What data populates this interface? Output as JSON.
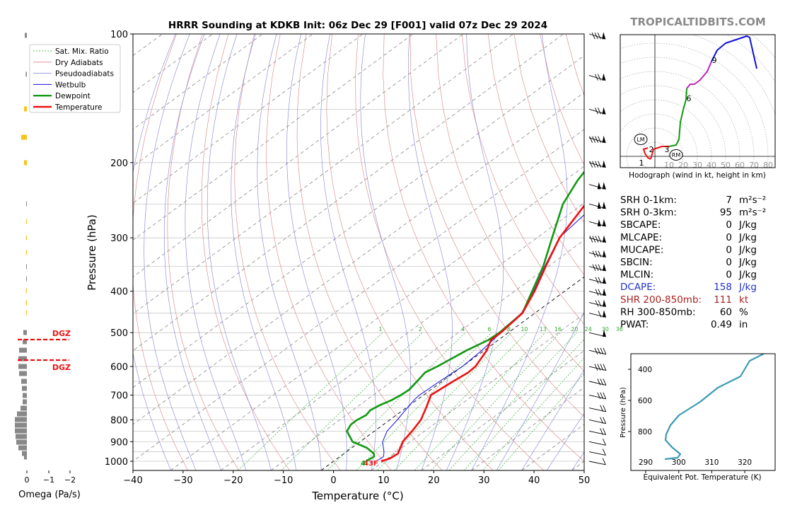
{
  "title": "HRRR Sounding at KDKB Init: 06z Dec 29 [F001] valid 07z Dec 29 2024",
  "watermark": "TROPICALTIDBITS.COM",
  "chart_data": [
    {
      "type": "line",
      "name": "skew-t",
      "xlabel": "Temperature (°C)",
      "ylabel": "Pressure (hPa)",
      "xlim": [
        -40,
        50
      ],
      "ylim": [
        1050,
        100
      ],
      "y_scale": "log",
      "x_ticks": [
        -40,
        -30,
        -20,
        -10,
        0,
        10,
        20,
        30,
        40,
        50
      ],
      "y_ticks": [
        100,
        200,
        300,
        400,
        500,
        600,
        700,
        800,
        900,
        1000
      ],
      "legend": {
        "position": "top-left",
        "entries": [
          "Sat. Mix. Ratio",
          "Dry Adiabats",
          "Pseudoadiabats",
          "Wetbulb",
          "Dewpoint",
          "Temperature"
        ]
      },
      "mixing_ratio_labels": [
        "1",
        "2",
        "4",
        "6",
        "8",
        "10",
        "13",
        "16",
        "20",
        "24",
        "30",
        "36"
      ],
      "surface_label": "43F",
      "series": [
        {
          "name": "Temperature",
          "color": "#ee1111",
          "points": [
            [
              1000,
              9.5
            ],
            [
              985,
              10.5
            ],
            [
              960,
              10.8
            ],
            [
              925,
              9.5
            ],
            [
              900,
              8.5
            ],
            [
              850,
              7.5
            ],
            [
              800,
              6.2
            ],
            [
              750,
              4.0
            ],
            [
              700,
              1.5
            ],
            [
              650,
              2.2
            ],
            [
              620,
              2.8
            ],
            [
              600,
              2.6
            ],
            [
              550,
              0.5
            ],
            [
              520,
              -1.5
            ],
            [
              500,
              -1.5
            ],
            [
              450,
              -2.5
            ],
            [
              400,
              -6
            ],
            [
              350,
              -10.5
            ],
            [
              300,
              -15.5
            ],
            [
              250,
              -19.5
            ],
            [
              220,
              -20.5
            ],
            [
              200,
              -19.5
            ],
            [
              170,
              -14.5
            ],
            [
              150,
              -11.5
            ],
            [
              120,
              -9.5
            ],
            [
              100,
              -6
            ]
          ]
        },
        {
          "name": "Dewpoint",
          "color": "#119911",
          "points": [
            [
              1000,
              6.5
            ],
            [
              975,
              6.8
            ],
            [
              960,
              6.0
            ],
            [
              930,
              3.0
            ],
            [
              900,
              -1.5
            ],
            [
              850,
              -5.5
            ],
            [
              820,
              -6.5
            ],
            [
              800,
              -6.5
            ],
            [
              780,
              -6.0
            ],
            [
              760,
              -6.5
            ],
            [
              740,
              -6.0
            ],
            [
              720,
              -5.0
            ],
            [
              700,
              -4.5
            ],
            [
              680,
              -4.3
            ],
            [
              650,
              -5.0
            ],
            [
              620,
              -5.8
            ],
            [
              600,
              -5.0
            ],
            [
              550,
              -3.5
            ],
            [
              520,
              -2.0
            ],
            [
              500,
              -1.8
            ],
            [
              450,
              -2.5
            ],
            [
              400,
              -6.5
            ],
            [
              350,
              -11.0
            ],
            [
              300,
              -17.0
            ],
            [
              250,
              -24.0
            ],
            [
              220,
              -27.5
            ],
            [
              200,
              -29.5
            ],
            [
              180,
              -33.5
            ],
            [
              150,
              -37.5
            ],
            [
              130,
              -37.0
            ],
            [
              110,
              -34.5
            ],
            [
              100,
              -32.0
            ]
          ]
        },
        {
          "name": "Wetbulb",
          "color": "#1111dd",
          "points": [
            [
              1000,
              8.5
            ],
            [
              975,
              8.7
            ],
            [
              950,
              7.5
            ],
            [
              925,
              6.0
            ],
            [
              900,
              4.5
            ],
            [
              850,
              2.5
            ],
            [
              800,
              1.5
            ],
            [
              760,
              0.5
            ],
            [
              720,
              -0.5
            ],
            [
              700,
              -0.8
            ],
            [
              650,
              -0.5
            ],
            [
              600,
              0.0
            ],
            [
              550,
              -0.5
            ],
            [
              500,
              -1.5
            ],
            [
              450,
              -2.7
            ],
            [
              400,
              -6.2
            ],
            [
              350,
              -10.7
            ],
            [
              300,
              -15.6
            ],
            [
              200,
              -19.6
            ],
            [
              170,
              -14.6
            ],
            [
              150,
              -11.7
            ],
            [
              120,
              -9.7
            ],
            [
              100,
              -6.2
            ]
          ]
        }
      ]
    },
    {
      "type": "line",
      "name": "hodograph",
      "xlabel": "Hodograph (wind in kt, height in km)",
      "ring_labels": [
        "10",
        "20",
        "30",
        "40",
        "50",
        "60",
        "70",
        "80"
      ],
      "height_labels": [
        "1",
        "2",
        "3",
        "6",
        "9"
      ],
      "markers": [
        "LM",
        "RM"
      ]
    },
    {
      "type": "line",
      "name": "theta-e",
      "xlabel": "Equivalent Pot. Temperature (K)",
      "ylabel": "Pressure (hPa)",
      "x_ticks": [
        "290",
        "300",
        "310",
        "320"
      ],
      "y_ticks": [
        "400",
        "600",
        "800"
      ],
      "color": "#3a9ab5"
    },
    {
      "type": "bar",
      "name": "omega",
      "xlabel": "Omega (Pa/s)",
      "x_ticks": [
        "0",
        "−1",
        "−2"
      ],
      "dgz_label": "DGZ"
    }
  ],
  "stats": [
    {
      "label": "SRH 0-1km:",
      "value": "7",
      "unit": "m²s⁻²",
      "color": "#000000"
    },
    {
      "label": "SRH 0-3km:",
      "value": "95",
      "unit": "m²s⁻²",
      "color": "#000000"
    },
    {
      "label": "SBCAPE:",
      "value": "0",
      "unit": "J/kg",
      "color": "#000000"
    },
    {
      "label": "MLCAPE:",
      "value": "0",
      "unit": "J/kg",
      "color": "#000000"
    },
    {
      "label": "MUCAPE:",
      "value": "0",
      "unit": "J/kg",
      "color": "#000000"
    },
    {
      "label": "SBCIN:",
      "value": "0",
      "unit": "J/kg",
      "color": "#000000"
    },
    {
      "label": "MLCIN:",
      "value": "0",
      "unit": "J/kg",
      "color": "#000000"
    },
    {
      "label": "DCAPE:",
      "value": "158",
      "unit": "J/kg",
      "color": "#2233cc"
    },
    {
      "label": "SHR 200-850mb:",
      "value": "111",
      "unit": "kt",
      "color": "#aa2222"
    },
    {
      "label": "RH 300-850mb:",
      "value": "60",
      "unit": "%",
      "color": "#000000"
    },
    {
      "label": "PWAT:",
      "value": "0.49",
      "unit": "in",
      "color": "#000000"
    }
  ]
}
